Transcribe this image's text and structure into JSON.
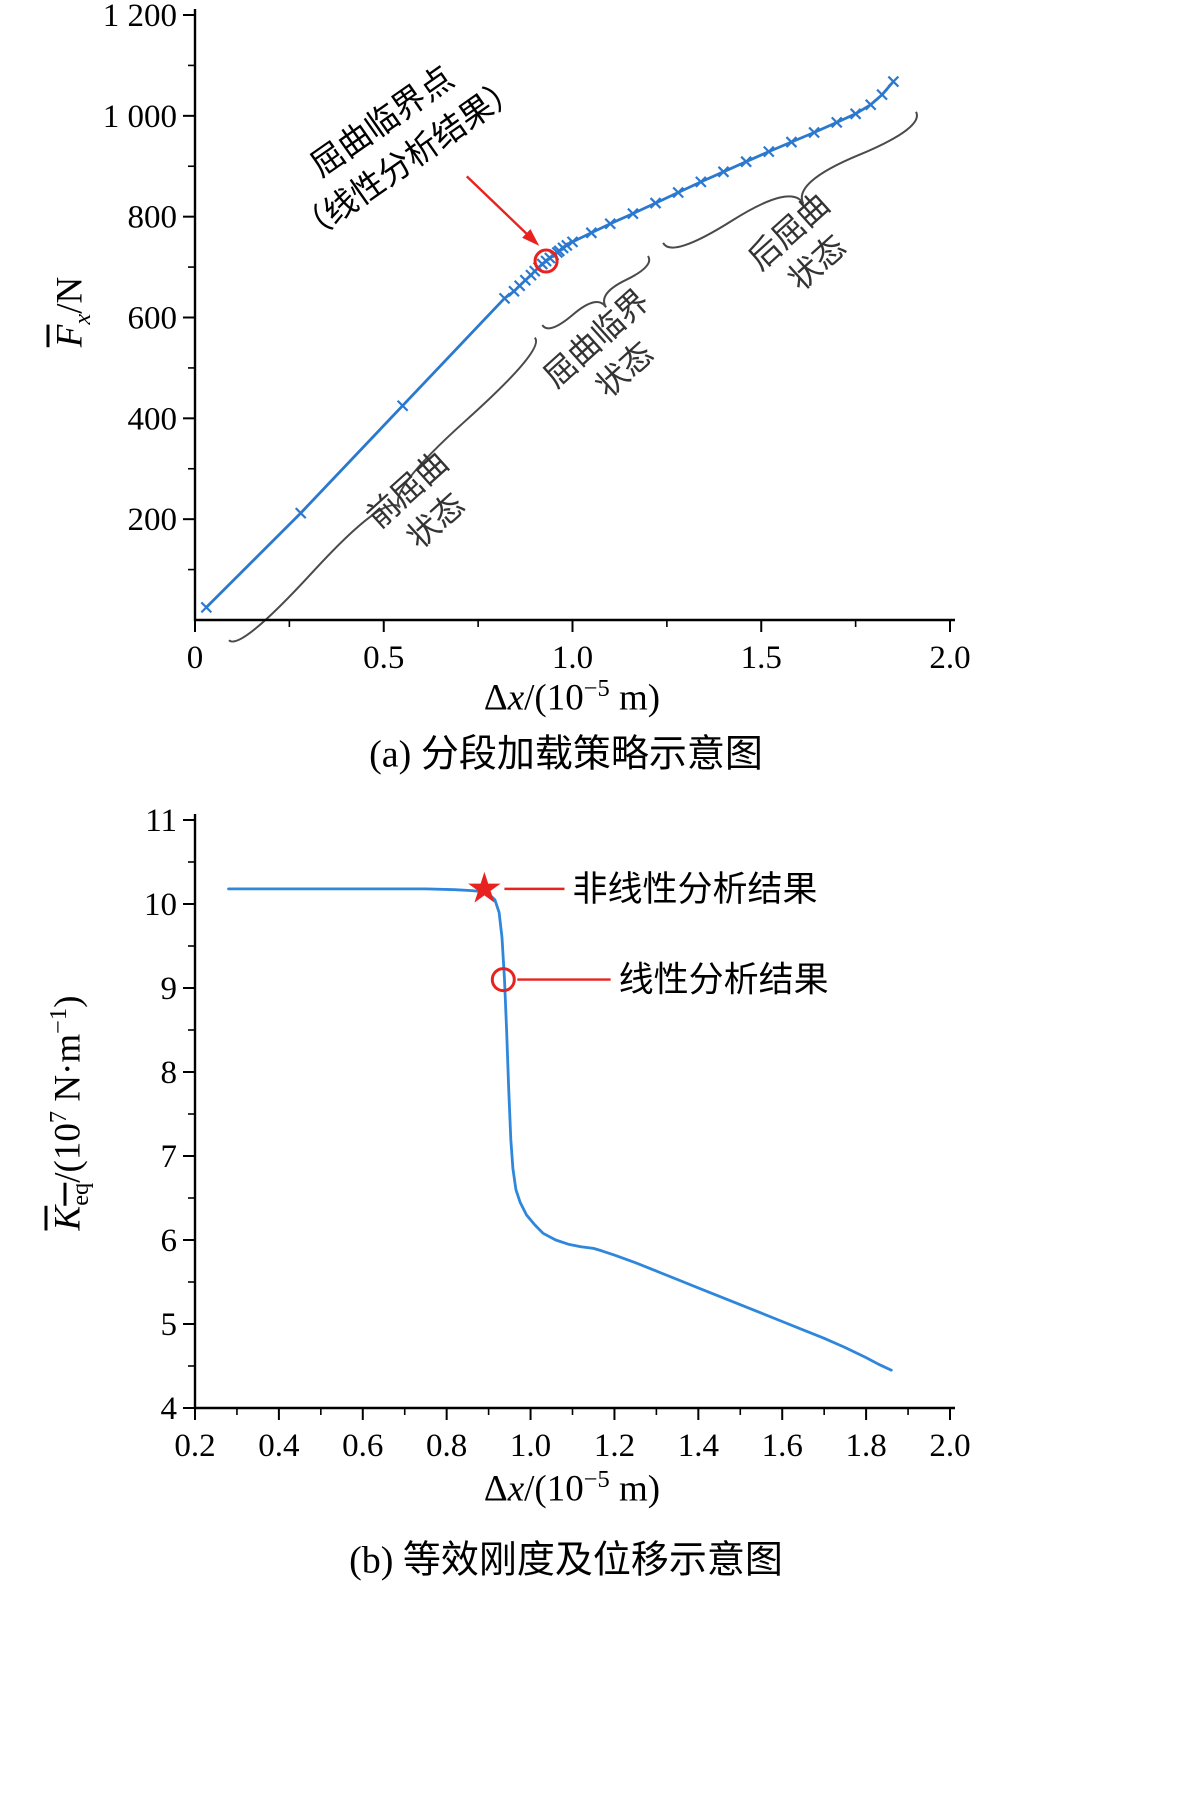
{
  "figure": {
    "captions": {
      "a": "(a) 分段加载策略示意图",
      "b": "(b) 等效刚度及位移示意图"
    }
  },
  "axis_labels": {
    "fx": {
      "sym": "F",
      "sub": "x",
      "unit": "/N"
    },
    "dx": {
      "pre": "Δ",
      "var": "x",
      "mid": "/(10",
      "exp": "−5",
      "post": " m)"
    },
    "keq": {
      "sym": "K",
      "sub": "eq",
      "mid": "/(10",
      "exp1": "7",
      "unit": " N·m",
      "exp2": "−1",
      "post": ")"
    }
  },
  "chart_data": [
    {
      "id": "chart-a",
      "type": "line",
      "title": "(a) 分段加载策略示意图",
      "xlabel": "Δx/(10⁻⁵ m)",
      "ylabel": "F̄x/N",
      "xlim": [
        0,
        2.0
      ],
      "ylim": [
        0,
        1200
      ],
      "xticks": [
        {
          "v": 0,
          "label": "0"
        },
        {
          "v": 0.5,
          "label": "0.5"
        },
        {
          "v": 1.0,
          "label": "1.0"
        },
        {
          "v": 1.5,
          "label": "1.5"
        },
        {
          "v": 2.0,
          "label": "2.0"
        }
      ],
      "xminor": [
        0.25,
        0.75,
        1.25,
        1.75
      ],
      "yticks": [
        {
          "v": 200,
          "label": "200"
        },
        {
          "v": 400,
          "label": "400"
        },
        {
          "v": 600,
          "label": "600"
        },
        {
          "v": 800,
          "label": "800"
        },
        {
          "v": 1000,
          "label": "1 000"
        },
        {
          "v": 1200,
          "label": "1 200"
        }
      ],
      "yminor": [
        100,
        300,
        500,
        700,
        900,
        1100
      ],
      "colors": {
        "line": "#2b79cf",
        "accent": "#e8231f",
        "brace": "#4a4a4a",
        "text": "#333333"
      },
      "series": [
        {
          "name": "load-displacement-curve",
          "color": "#2b79cf",
          "marker": "x",
          "points": [
            [
              0.03,
              25
            ],
            [
              0.28,
              212
            ],
            [
              0.55,
              425
            ],
            [
              0.82,
              638
            ],
            [
              0.845,
              652
            ],
            [
              0.86,
              663
            ],
            [
              0.875,
              674
            ],
            [
              0.89,
              684
            ],
            [
              0.9,
              692
            ],
            [
              0.91,
              699
            ],
            [
              0.92,
              706
            ],
            [
              0.93,
              712
            ],
            [
              0.94,
              718
            ],
            [
              0.95,
              724
            ],
            [
              0.96,
              729
            ],
            [
              0.965,
              732
            ],
            [
              0.975,
              738
            ],
            [
              0.985,
              743
            ],
            [
              1.0,
              750
            ],
            [
              1.05,
              768
            ],
            [
              1.1,
              786
            ],
            [
              1.16,
              806
            ],
            [
              1.22,
              827
            ],
            [
              1.28,
              848
            ],
            [
              1.34,
              869
            ],
            [
              1.4,
              889
            ],
            [
              1.46,
              909
            ],
            [
              1.52,
              929
            ],
            [
              1.58,
              948
            ],
            [
              1.64,
              967
            ],
            [
              1.7,
              987
            ],
            [
              1.75,
              1004
            ],
            [
              1.79,
              1022
            ],
            [
              1.82,
              1042
            ],
            [
              1.85,
              1068
            ]
          ]
        }
      ],
      "critical_point": {
        "x": 0.93,
        "y": 712
      },
      "arrow": {
        "from": [
          0.72,
          880
        ],
        "to": [
          0.912,
          742
        ]
      },
      "callout": {
        "x": 0.53,
        "y": 952,
        "rotation": -35,
        "lines": [
          "屈曲临界点",
          "（线性分析结果）"
        ]
      },
      "braces": [
        {
          "p1": [
            0.09,
            -40
          ],
          "p2": [
            0.9,
            560
          ],
          "depth": 26,
          "label": {
            "x": 0.6,
            "y": 228,
            "rotation": -42,
            "lines": [
              "前屈曲",
              "状态"
            ]
          }
        },
        {
          "p1": [
            0.92,
            585
          ],
          "p2": [
            1.2,
            722
          ],
          "depth": 20,
          "label": {
            "x": 1.1,
            "y": 528,
            "rotation": -42,
            "lines": [
              "屈曲临界",
              "状态"
            ]
          }
        },
        {
          "p1": [
            1.24,
            748
          ],
          "p2": [
            1.91,
            1008
          ],
          "depth": 30,
          "label": {
            "x": 1.61,
            "y": 740,
            "rotation": -42,
            "lines": [
              "后屈曲",
              "状态"
            ]
          }
        }
      ]
    },
    {
      "id": "chart-b",
      "type": "line",
      "title": "(b) 等效刚度及位移示意图",
      "xlabel": "Δx/(10⁻⁵ m)",
      "ylabel": "K̄eq/(10⁷ N·m⁻¹)",
      "xlim": [
        0.2,
        2.0
      ],
      "ylim": [
        4,
        11
      ],
      "xticks": [
        {
          "v": 0.2,
          "label": "0.2"
        },
        {
          "v": 0.4,
          "label": "0.4"
        },
        {
          "v": 0.6,
          "label": "0.6"
        },
        {
          "v": 0.8,
          "label": "0.8"
        },
        {
          "v": 1.0,
          "label": "1.0"
        },
        {
          "v": 1.2,
          "label": "1.2"
        },
        {
          "v": 1.4,
          "label": "1.4"
        },
        {
          "v": 1.6,
          "label": "1.6"
        },
        {
          "v": 1.8,
          "label": "1.8"
        },
        {
          "v": 2.0,
          "label": "2.0"
        }
      ],
      "xminor": [
        0.3,
        0.5,
        0.7,
        0.9,
        1.1,
        1.3,
        1.5,
        1.7,
        1.9
      ],
      "yticks": [
        {
          "v": 4,
          "label": "4"
        },
        {
          "v": 5,
          "label": "5"
        },
        {
          "v": 6,
          "label": "6"
        },
        {
          "v": 7,
          "label": "7"
        },
        {
          "v": 8,
          "label": "8"
        },
        {
          "v": 9,
          "label": "9"
        },
        {
          "v": 10,
          "label": "10"
        },
        {
          "v": 11,
          "label": "11"
        }
      ],
      "yminor": [
        4.5,
        5.5,
        6.5,
        7.5,
        8.5,
        9.5,
        10.5
      ],
      "colors": {
        "line": "#2f87dc",
        "accent": "#e8231f",
        "brace": "#4a4a4a",
        "text": "#333333"
      },
      "series": [
        {
          "name": "equivalent-stiffness-curve",
          "color": "#2f87dc",
          "marker": null,
          "points": [
            [
              0.28,
              10.18
            ],
            [
              0.45,
              10.18
            ],
            [
              0.6,
              10.18
            ],
            [
              0.75,
              10.18
            ],
            [
              0.82,
              10.17
            ],
            [
              0.86,
              10.16
            ],
            [
              0.88,
              10.15
            ],
            [
              0.9,
              10.12
            ],
            [
              0.915,
              10.05
            ],
            [
              0.925,
              9.9
            ],
            [
              0.932,
              9.6
            ],
            [
              0.938,
              9.1
            ],
            [
              0.943,
              8.5
            ],
            [
              0.948,
              7.8
            ],
            [
              0.953,
              7.2
            ],
            [
              0.958,
              6.85
            ],
            [
              0.965,
              6.6
            ],
            [
              0.975,
              6.45
            ],
            [
              0.99,
              6.3
            ],
            [
              1.01,
              6.18
            ],
            [
              1.03,
              6.08
            ],
            [
              1.06,
              6.0
            ],
            [
              1.09,
              5.95
            ],
            [
              1.12,
              5.92
            ],
            [
              1.15,
              5.9
            ],
            [
              1.17,
              5.87
            ],
            [
              1.2,
              5.82
            ],
            [
              1.25,
              5.73
            ],
            [
              1.3,
              5.63
            ],
            [
              1.35,
              5.53
            ],
            [
              1.4,
              5.43
            ],
            [
              1.45,
              5.33
            ],
            [
              1.5,
              5.23
            ],
            [
              1.55,
              5.13
            ],
            [
              1.6,
              5.03
            ],
            [
              1.65,
              4.93
            ],
            [
              1.7,
              4.83
            ],
            [
              1.75,
              4.72
            ],
            [
              1.8,
              4.6
            ],
            [
              1.83,
              4.52
            ],
            [
              1.86,
              4.45
            ]
          ]
        }
      ],
      "markers": [
        {
          "shape": "star",
          "x": 0.89,
          "y": 10.18,
          "color": "#e8231f",
          "label": "非线性分析结果",
          "label_x": 1.1
        },
        {
          "shape": "circle",
          "x": 0.935,
          "y": 9.1,
          "color": "#e8231f",
          "label": "线性分析结果",
          "label_x": 1.21
        }
      ]
    }
  ]
}
